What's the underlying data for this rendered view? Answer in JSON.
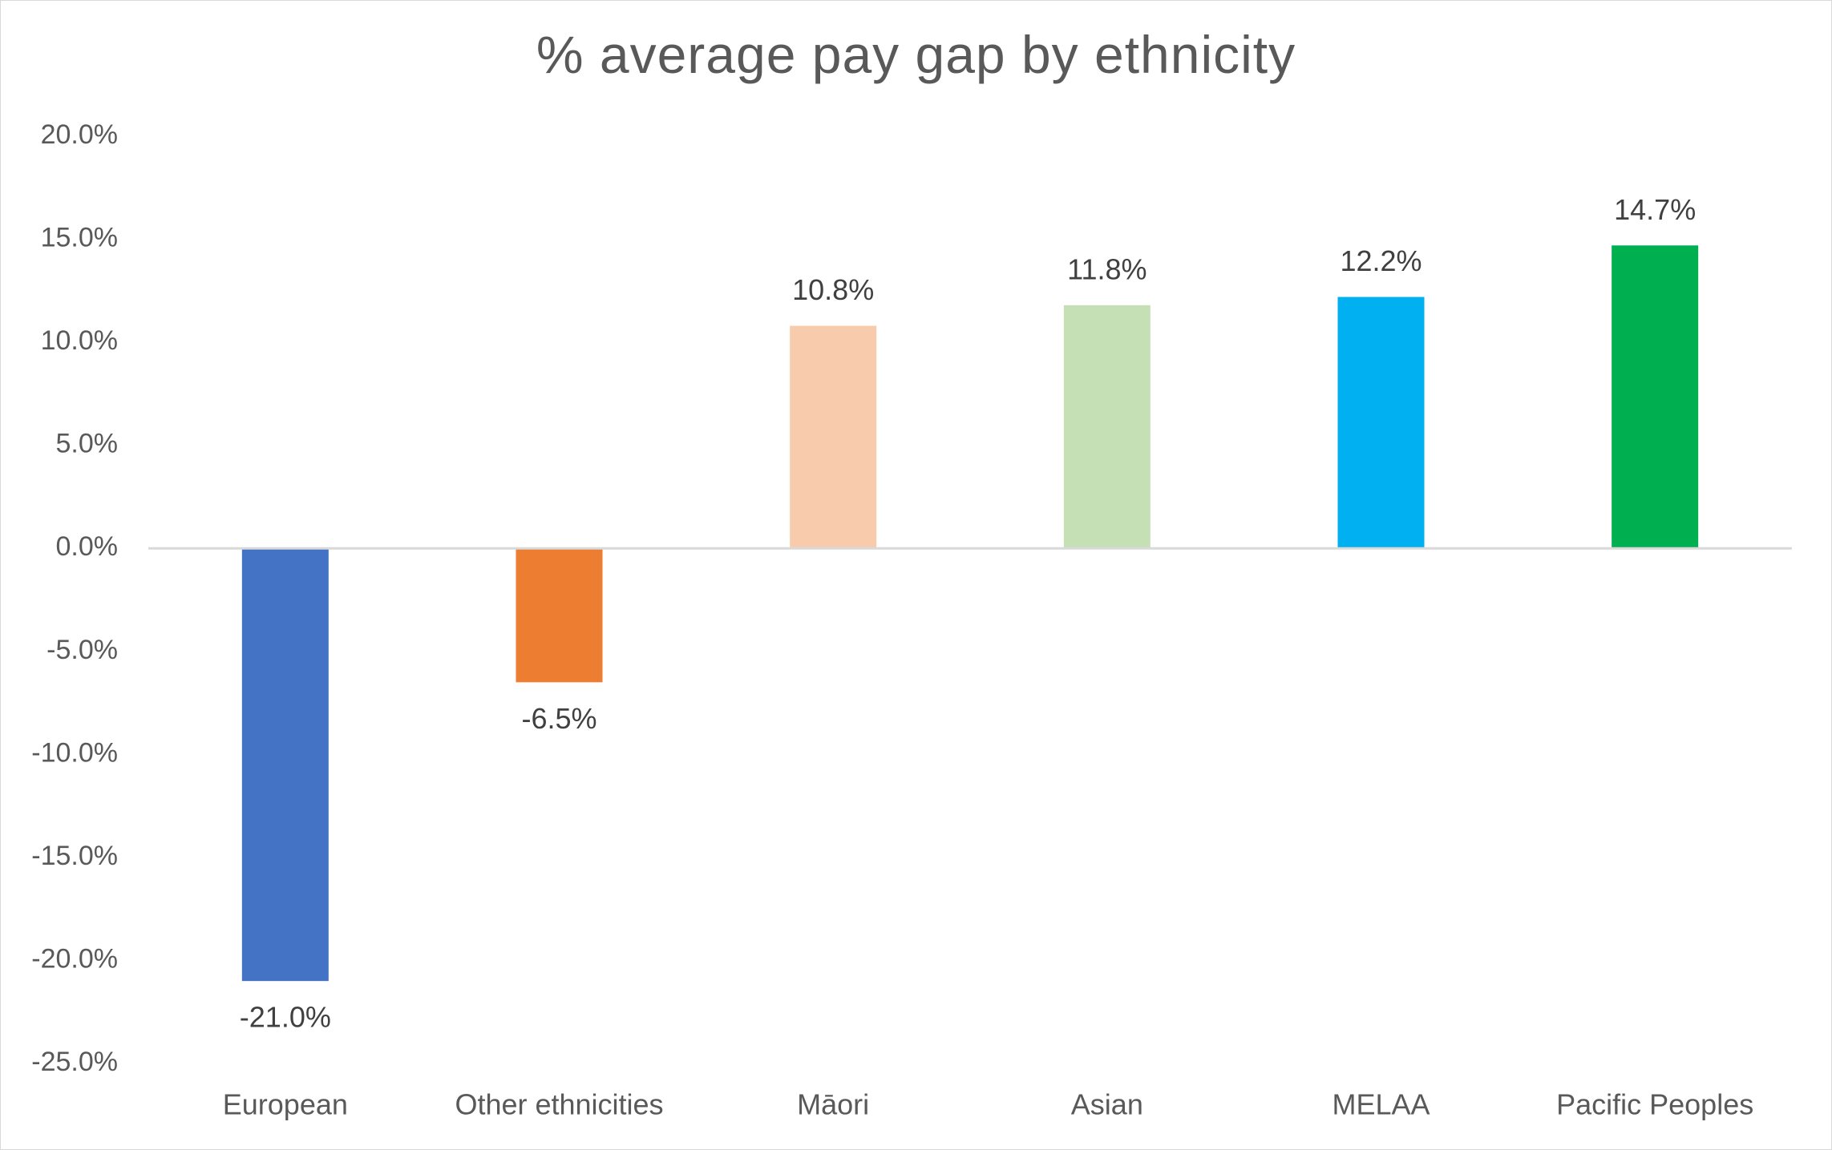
{
  "chart_data": {
    "type": "bar",
    "title": "% average pay gap by ethnicity",
    "xlabel": "",
    "ylabel": "",
    "categories": [
      "European",
      "Other ethnicities",
      "Māori",
      "Asian",
      "MELAA",
      "Pacific Peoples"
    ],
    "values": [
      -21.0,
      -6.5,
      10.8,
      11.8,
      12.2,
      14.7
    ],
    "data_labels": [
      "-21.0%",
      "-6.5%",
      "10.8%",
      "11.8%",
      "12.2%",
      "14.7%"
    ],
    "colors": [
      "#4472c4",
      "#ed7d31",
      "#f8cbad",
      "#c5e0b4",
      "#00b0f0",
      "#00b050"
    ],
    "ylim": [
      -25,
      20
    ],
    "yticks": [
      20,
      15,
      10,
      5,
      0,
      -5,
      -10,
      -15,
      -20,
      -25
    ],
    "ytick_labels": [
      "20.0%",
      "15.0%",
      "10.0%",
      "5.0%",
      "0.0%",
      "-5.0%",
      "-10.0%",
      "-15.0%",
      "-20.0%",
      "-25.0%"
    ],
    "grid": false,
    "legend": "none"
  }
}
